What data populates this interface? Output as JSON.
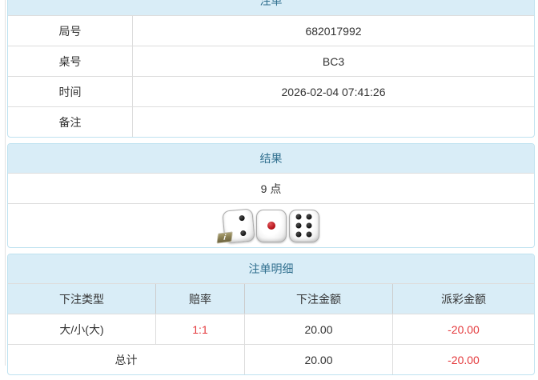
{
  "colors": {
    "accent_blue": "#31708f",
    "heading_bg": "#d9edf7",
    "panel_border": "#bfe2f0",
    "negative_red": "#e4393c"
  },
  "bet_slip": {
    "title": "注单",
    "rows": [
      {
        "label": "局号",
        "value": "682017992"
      },
      {
        "label": "桌号",
        "value": "BC3"
      },
      {
        "label": "时间",
        "value": "2026-02-04 07:41:26"
      },
      {
        "label": "备注",
        "value": ""
      }
    ]
  },
  "result": {
    "title": "结果",
    "points": "9 点",
    "dice": [
      2,
      1,
      6
    ],
    "info_badge": "i"
  },
  "details": {
    "title": "注单明细",
    "columns": [
      "下注类型",
      "赔率",
      "下注金额",
      "派彩金额"
    ],
    "rows": [
      {
        "bet_type": "大/小(大)",
        "odds": "1:1",
        "bet_amount": "20.00",
        "payout": "-20.00"
      }
    ],
    "total": {
      "label": "总计",
      "bet_amount": "20.00",
      "payout": "-20.00"
    }
  }
}
